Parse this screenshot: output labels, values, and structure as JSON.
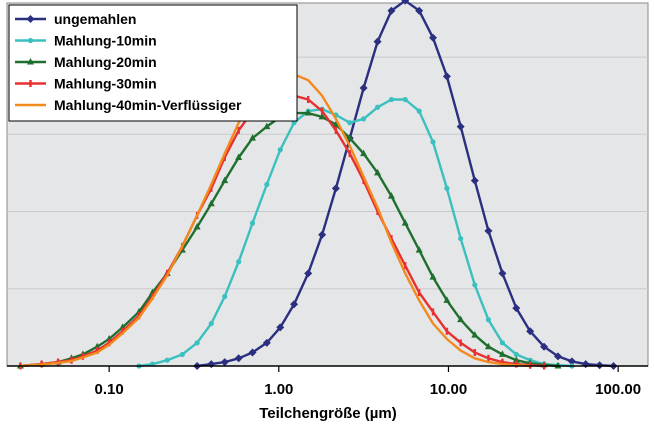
{
  "chart_data": {
    "type": "line",
    "title": "",
    "xlabel": "Teilchengröße (µm)",
    "ylabel": "",
    "x_scale": "log",
    "xlim": [
      0.025,
      150
    ],
    "ylim": [
      0,
      0.94
    ],
    "x_ticks": [
      0.1,
      1,
      10,
      100
    ],
    "x_tick_labels": [
      "0.10",
      "1.00",
      "10.00",
      "100.00"
    ],
    "grid": true,
    "legend_position": "top-left",
    "series": [
      {
        "name": "ungemahlen",
        "color": "#2b2f7f",
        "marker": "diamond",
        "x": [
          0.33,
          0.4,
          0.48,
          0.58,
          0.7,
          0.85,
          1.02,
          1.23,
          1.49,
          1.8,
          2.17,
          2.62,
          3.16,
          3.82,
          4.61,
          5.56,
          6.72,
          8.11,
          9.79,
          11.8,
          14.3,
          17.2,
          20.8,
          25.1,
          30.3,
          36.6,
          44.2,
          53.4,
          64.4,
          77.8,
          93.9
        ],
        "y": [
          0.0,
          0.005,
          0.01,
          0.02,
          0.035,
          0.06,
          0.1,
          0.16,
          0.24,
          0.34,
          0.46,
          0.59,
          0.72,
          0.84,
          0.92,
          0.946,
          0.92,
          0.85,
          0.75,
          0.62,
          0.48,
          0.35,
          0.24,
          0.15,
          0.09,
          0.05,
          0.025,
          0.012,
          0.005,
          0.002,
          0.0
        ]
      },
      {
        "name": "Mahlung-10min",
        "color": "#3cbfbf",
        "marker": "dot",
        "x": [
          0.15,
          0.18,
          0.22,
          0.27,
          0.33,
          0.4,
          0.48,
          0.58,
          0.7,
          0.85,
          1.02,
          1.23,
          1.49,
          1.8,
          2.17,
          2.62,
          3.16,
          3.82,
          4.61,
          5.56,
          6.72,
          8.11,
          9.79,
          11.8,
          14.3,
          17.2,
          20.8,
          25.1,
          30.3,
          36.6,
          44.2,
          53.4
        ],
        "y": [
          0.0,
          0.005,
          0.015,
          0.03,
          0.06,
          0.11,
          0.18,
          0.27,
          0.37,
          0.47,
          0.56,
          0.63,
          0.66,
          0.665,
          0.65,
          0.63,
          0.64,
          0.67,
          0.69,
          0.69,
          0.66,
          0.58,
          0.46,
          0.33,
          0.21,
          0.12,
          0.06,
          0.03,
          0.015,
          0.005,
          0.002,
          0.0
        ]
      },
      {
        "name": "Mahlung-20min",
        "color": "#1f6f2f",
        "marker": "triangle",
        "x": [
          0.03,
          0.04,
          0.05,
          0.06,
          0.07,
          0.085,
          0.1,
          0.12,
          0.15,
          0.18,
          0.22,
          0.27,
          0.33,
          0.4,
          0.48,
          0.58,
          0.7,
          0.85,
          1.02,
          1.23,
          1.49,
          1.8,
          2.17,
          2.62,
          3.16,
          3.82,
          4.61,
          5.56,
          6.72,
          8.11,
          9.79,
          11.8,
          14.3,
          17.2,
          20.8,
          25.1,
          30.3,
          36.6,
          44.2
        ],
        "y": [
          0.0,
          0.005,
          0.01,
          0.02,
          0.03,
          0.05,
          0.07,
          0.1,
          0.14,
          0.19,
          0.24,
          0.3,
          0.36,
          0.42,
          0.48,
          0.54,
          0.59,
          0.62,
          0.645,
          0.655,
          0.655,
          0.645,
          0.625,
          0.59,
          0.55,
          0.5,
          0.44,
          0.37,
          0.3,
          0.23,
          0.17,
          0.12,
          0.08,
          0.05,
          0.03,
          0.015,
          0.007,
          0.003,
          0.0
        ]
      },
      {
        "name": "Mahlung-30min",
        "color": "#e83030",
        "marker": "dash",
        "x": [
          0.03,
          0.04,
          0.05,
          0.06,
          0.07,
          0.085,
          0.1,
          0.12,
          0.15,
          0.18,
          0.22,
          0.27,
          0.33,
          0.4,
          0.48,
          0.58,
          0.7,
          0.85,
          1.02,
          1.23,
          1.49,
          1.8,
          2.17,
          2.62,
          3.16,
          3.82,
          4.61,
          5.56,
          6.72,
          8.11,
          9.79,
          11.8,
          14.3,
          17.2,
          20.8,
          25.1,
          30.3,
          36.6
        ],
        "y": [
          0.0,
          0.005,
          0.01,
          0.015,
          0.025,
          0.04,
          0.06,
          0.09,
          0.13,
          0.18,
          0.24,
          0.31,
          0.39,
          0.46,
          0.54,
          0.61,
          0.66,
          0.69,
          0.7,
          0.7,
          0.69,
          0.66,
          0.61,
          0.55,
          0.48,
          0.4,
          0.33,
          0.26,
          0.19,
          0.14,
          0.09,
          0.06,
          0.035,
          0.02,
          0.01,
          0.005,
          0.002,
          0.0
        ]
      },
      {
        "name": "Mahlung-40min-Verflüssiger",
        "color": "#f28a1e",
        "marker": "none",
        "x": [
          0.03,
          0.04,
          0.05,
          0.06,
          0.07,
          0.085,
          0.1,
          0.12,
          0.15,
          0.18,
          0.22,
          0.27,
          0.33,
          0.4,
          0.48,
          0.58,
          0.7,
          0.85,
          1.02,
          1.23,
          1.49,
          1.8,
          2.17,
          2.62,
          3.16,
          3.82,
          4.61,
          5.56,
          6.72,
          8.11,
          9.79,
          11.8,
          14.3,
          17.2,
          20.8,
          25.1,
          30.3
        ],
        "y": [
          0.0,
          0.004,
          0.008,
          0.013,
          0.022,
          0.035,
          0.055,
          0.085,
          0.125,
          0.175,
          0.235,
          0.31,
          0.39,
          0.47,
          0.55,
          0.63,
          0.69,
          0.73,
          0.75,
          0.755,
          0.74,
          0.7,
          0.64,
          0.57,
          0.49,
          0.41,
          0.32,
          0.24,
          0.17,
          0.11,
          0.07,
          0.04,
          0.02,
          0.01,
          0.005,
          0.002,
          0.0
        ]
      }
    ]
  }
}
